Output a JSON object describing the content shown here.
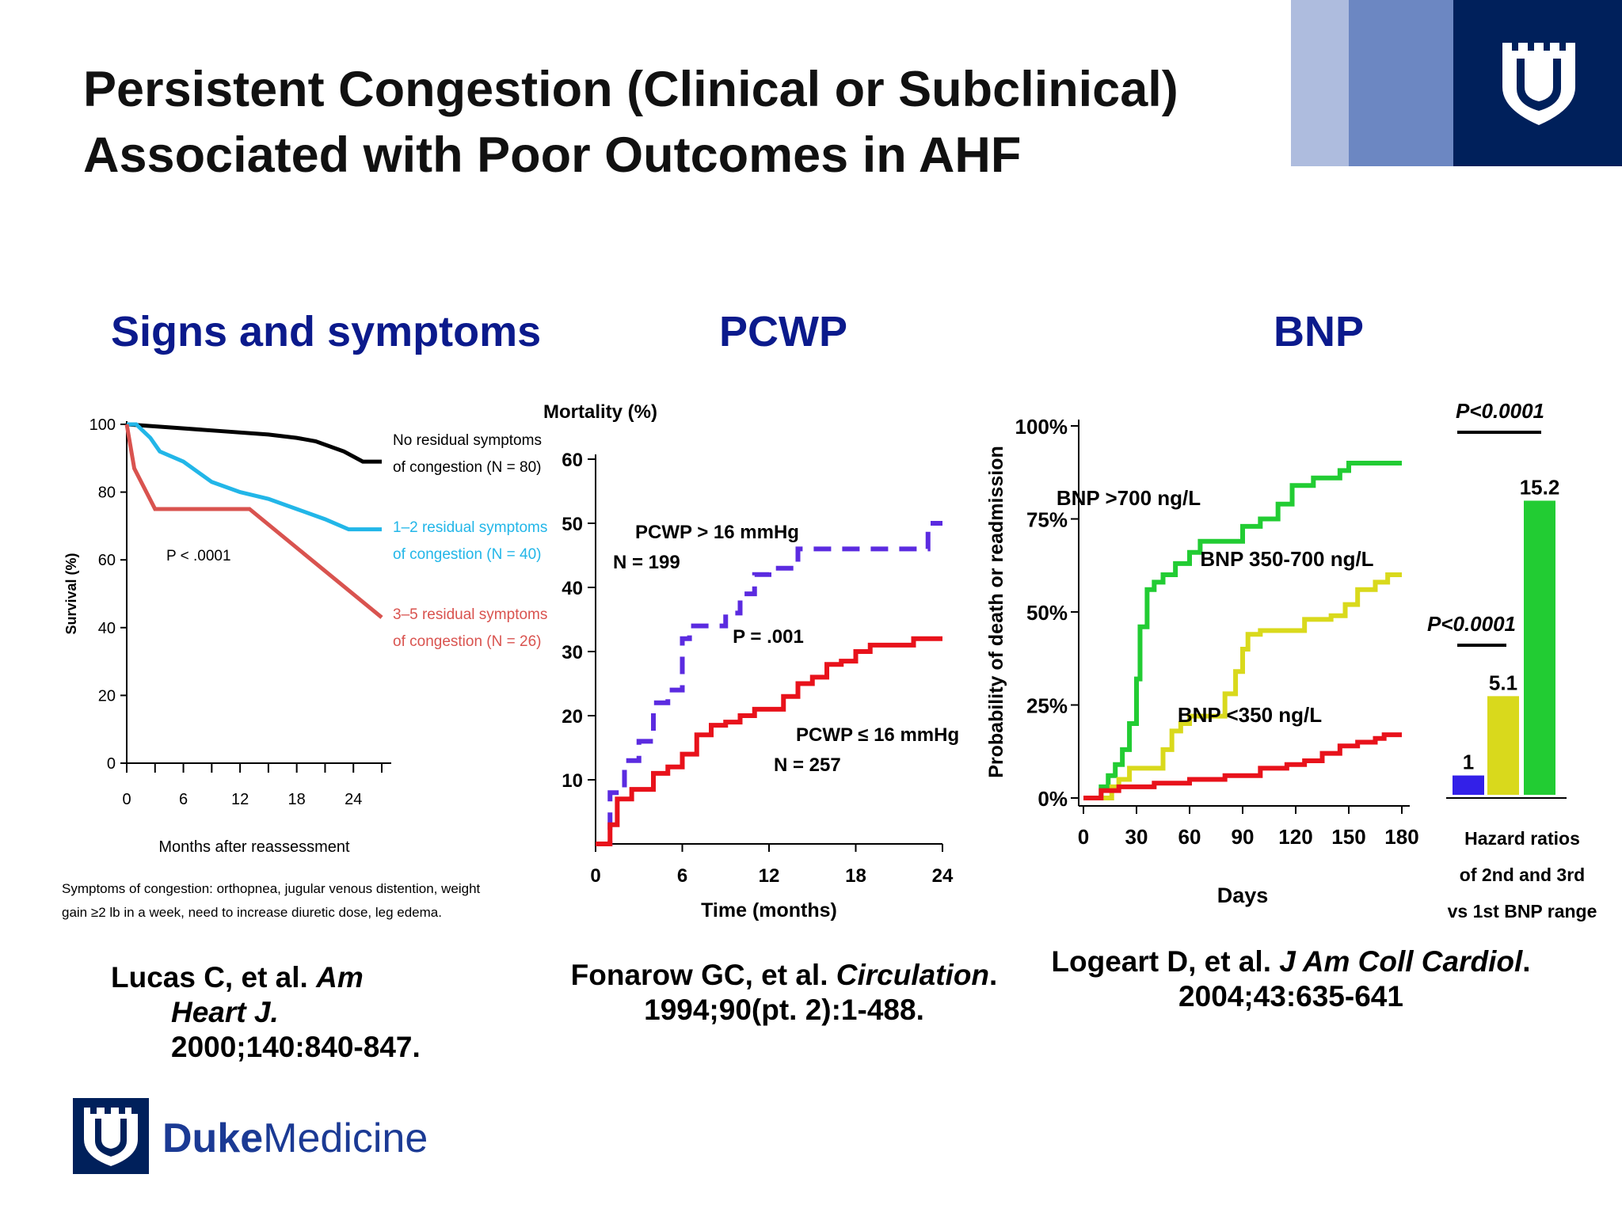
{
  "title_lines": [
    "Persistent Congestion (Clinical or Subclinical)",
    "Associated with Poor Outcomes in AHF"
  ],
  "section_headers": [
    "Signs and symptoms",
    "PCWP",
    "BNP"
  ],
  "brand": {
    "name_bold": "Duke",
    "name_regular": "Medicine",
    "colors": {
      "dark_navy": "#00205b",
      "mid_blue": "#6c87c2",
      "light_blue": "#aebcde",
      "brand_text": "#1b3a94"
    },
    "icons": [
      "duke-shield-icon"
    ]
  },
  "citations": {
    "lucas": {
      "authors": "Lucas C, et al.",
      "journal_a": "Am",
      "journal_b": "Heart J.",
      "details": "2000;140:840-847."
    },
    "fonarow": {
      "authors": "Fonarow GC, et al.",
      "journal": "Circulation",
      "after_journal": ".",
      "details": "1994;90(pt. 2):1-488."
    },
    "logeart": {
      "authors": "Logeart D, et al.",
      "journal": "J Am Coll Cardiol",
      "after_journal": ".",
      "details": "2004;43:635-641"
    }
  },
  "chart_data": [
    {
      "type": "line",
      "ylabel": "Survival (%)",
      "xlabel": "Months after reassessment",
      "xlim": [
        0,
        27
      ],
      "ylim": [
        0,
        100
      ],
      "x_ticks": [
        "0",
        "6",
        "12",
        "18",
        "24"
      ],
      "y_ticks": [
        "0",
        "20",
        "40",
        "60",
        "80",
        "100"
      ],
      "annotation": "P < .0001",
      "footnote_lines": [
        "Symptoms of congestion: orthopnea, jugular venous distention, weight",
        "gain ≥2 lb in a week, need to increase diuretic dose, leg edema."
      ],
      "series": [
        {
          "label_lines": [
            "No residual symptoms",
            "of congestion (N = 80)"
          ],
          "color": "#000000",
          "points": [
            [
              0,
              100
            ],
            [
              5,
              99
            ],
            [
              10,
              98
            ],
            [
              15,
              97
            ],
            [
              18,
              96
            ],
            [
              20,
              95
            ],
            [
              23,
              92
            ],
            [
              25,
              89
            ],
            [
              27,
              89
            ]
          ]
        },
        {
          "label_lines": [
            "1–2 residual symptoms",
            "of congestion (N = 40)"
          ],
          "color": "#22b6e8",
          "points": [
            [
              0,
              100
            ],
            [
              1,
              100
            ],
            [
              2.5,
              96
            ],
            [
              3,
              94
            ],
            [
              3.5,
              92
            ],
            [
              6,
              89
            ],
            [
              9,
              83
            ],
            [
              12,
              80
            ],
            [
              15,
              78
            ],
            [
              18,
              75
            ],
            [
              21,
              72
            ],
            [
              23.5,
              69
            ],
            [
              27,
              69
            ]
          ]
        },
        {
          "label_lines": [
            "3–5 residual symptoms",
            "of congestion (N = 26)"
          ],
          "color": "#d9534f",
          "points": [
            [
              0,
              100
            ],
            [
              0.8,
              87
            ],
            [
              3,
              75
            ],
            [
              5,
              75
            ],
            [
              13,
              75
            ],
            [
              27,
              43
            ]
          ]
        }
      ]
    },
    {
      "type": "line",
      "ylabel": "Mortality (%)",
      "xlabel": "Time (months)",
      "xlim": [
        0,
        24
      ],
      "ylim": [
        0,
        60
      ],
      "x_ticks": [
        "0",
        "6",
        "12",
        "18",
        "24"
      ],
      "y_ticks": [
        "10",
        "20",
        "30",
        "40",
        "50",
        "60"
      ],
      "annotation": "P = .001",
      "series": [
        {
          "label_lines": [
            "PCWP > 16 mmHg",
            "N = 199"
          ],
          "color": "#5b2be0",
          "dashed": true,
          "points": [
            [
              0,
              0
            ],
            [
              1,
              8
            ],
            [
              2,
              13
            ],
            [
              3,
              16
            ],
            [
              4,
              22
            ],
            [
              5,
              24
            ],
            [
              6,
              32
            ],
            [
              6.5,
              34
            ],
            [
              8,
              34
            ],
            [
              9,
              36
            ],
            [
              10,
              39
            ],
            [
              11,
              42
            ],
            [
              12,
              43
            ],
            [
              13,
              43
            ],
            [
              14,
              46
            ],
            [
              16,
              46
            ],
            [
              18,
              46
            ],
            [
              20,
              46
            ],
            [
              22,
              46
            ],
            [
              23,
              50
            ],
            [
              24,
              50
            ]
          ]
        },
        {
          "label_lines": [
            "PCWP ≤ 16 mmHg",
            "N = 257"
          ],
          "color": "#e8121b",
          "dashed": false,
          "points": [
            [
              0,
              0
            ],
            [
              1,
              3
            ],
            [
              1.5,
              7
            ],
            [
              2.5,
              8.5
            ],
            [
              4,
              11
            ],
            [
              5,
              12
            ],
            [
              6,
              14
            ],
            [
              7,
              17
            ],
            [
              8,
              18.5
            ],
            [
              9,
              19
            ],
            [
              10,
              20
            ],
            [
              11,
              21
            ],
            [
              12,
              21
            ],
            [
              13,
              23
            ],
            [
              14,
              25
            ],
            [
              15,
              26
            ],
            [
              16,
              28
            ],
            [
              17,
              28.5
            ],
            [
              18,
              30
            ],
            [
              19,
              31
            ],
            [
              21,
              31
            ],
            [
              22,
              32
            ],
            [
              24,
              32
            ]
          ]
        }
      ]
    },
    {
      "type": "line",
      "ylabel": "Probability of death or readmission",
      "xlabel": "Days",
      "xlim": [
        0,
        180
      ],
      "ylim": [
        0,
        100
      ],
      "x_ticks": [
        "0",
        "30",
        "60",
        "90",
        "120",
        "150",
        "180"
      ],
      "y_ticks": [
        "0%",
        "25%",
        "50%",
        "75%",
        "100%"
      ],
      "series": [
        {
          "label": "BNP >700 ng/L",
          "color": "#22cc33",
          "points": [
            [
              0,
              0
            ],
            [
              8,
              0
            ],
            [
              10,
              3
            ],
            [
              14,
              6
            ],
            [
              18,
              9
            ],
            [
              22,
              13
            ],
            [
              26,
              20
            ],
            [
              30,
              32
            ],
            [
              32,
              46
            ],
            [
              36,
              56
            ],
            [
              40,
              58
            ],
            [
              45,
              60
            ],
            [
              52,
              63
            ],
            [
              60,
              66
            ],
            [
              66,
              69
            ],
            [
              75,
              69
            ],
            [
              90,
              73
            ],
            [
              100,
              75
            ],
            [
              110,
              79
            ],
            [
              118,
              84
            ],
            [
              130,
              86
            ],
            [
              140,
              86
            ],
            [
              145,
              88
            ],
            [
              150,
              90
            ],
            [
              160,
              90
            ],
            [
              180,
              90
            ]
          ]
        },
        {
          "label": "BNP 350-700 ng/L",
          "color": "#d9d91c",
          "points": [
            [
              0,
              0
            ],
            [
              12,
              0
            ],
            [
              16,
              3
            ],
            [
              20,
              5
            ],
            [
              26,
              8
            ],
            [
              40,
              8
            ],
            [
              45,
              13
            ],
            [
              50,
              18
            ],
            [
              55,
              20
            ],
            [
              60,
              22
            ],
            [
              72,
              22
            ],
            [
              80,
              28
            ],
            [
              86,
              34
            ],
            [
              90,
              40
            ],
            [
              93,
              44
            ],
            [
              100,
              45
            ],
            [
              120,
              45
            ],
            [
              125,
              48
            ],
            [
              140,
              49
            ],
            [
              148,
              52
            ],
            [
              155,
              56
            ],
            [
              165,
              58
            ],
            [
              172,
              60
            ],
            [
              180,
              60
            ]
          ]
        },
        {
          "label": "BNP <350 ng/L",
          "color": "#e8121b",
          "points": [
            [
              0,
              0
            ],
            [
              6,
              0
            ],
            [
              10,
              2
            ],
            [
              20,
              3
            ],
            [
              40,
              4
            ],
            [
              60,
              5
            ],
            [
              80,
              6
            ],
            [
              100,
              8
            ],
            [
              110,
              8
            ],
            [
              115,
              9
            ],
            [
              125,
              10
            ],
            [
              135,
              12
            ],
            [
              145,
              14
            ],
            [
              155,
              15
            ],
            [
              165,
              16
            ],
            [
              170,
              17
            ],
            [
              180,
              17
            ]
          ]
        }
      ],
      "hazard_ratio": {
        "categories": [
          "1st",
          "2nd",
          "3rd"
        ],
        "values": [
          1,
          5.1,
          15.2
        ],
        "value_labels": [
          "1",
          "5.1",
          "15.2"
        ],
        "colors": [
          "#3320e8",
          "#d9d91c",
          "#22cc33"
        ],
        "p_values": [
          "P<0.0001",
          "P<0.0001"
        ],
        "label_lines": [
          "Hazard ratios",
          "of 2nd and 3rd",
          "vs 1st BNP range"
        ]
      }
    }
  ]
}
